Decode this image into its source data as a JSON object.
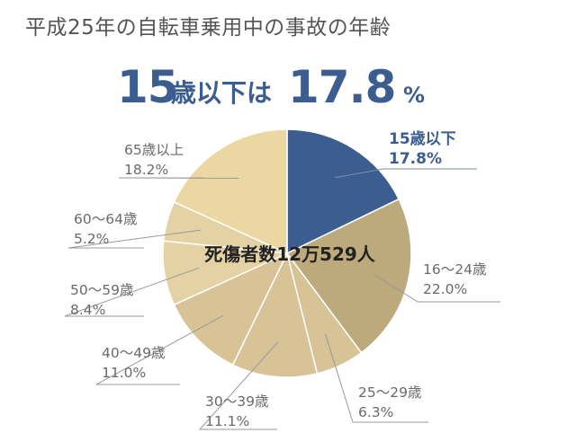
{
  "chart_data": {
    "type": "pie",
    "title": "平成25年の自転車乗用中の事故の年齢",
    "headline": {
      "category": "15歳以下",
      "value": "17.8",
      "unit": "%"
    },
    "center_text": "死傷者数12万529人",
    "slices": [
      {
        "label": "15歳以下",
        "value": 17.8,
        "value_text": "17.8%",
        "color": "#3b5d8f"
      },
      {
        "label": "16～24歳",
        "value": 22.0,
        "value_text": "22.0%",
        "color": "#bca97c"
      },
      {
        "label": "25～29歳",
        "value": 6.3,
        "value_text": "6.3%",
        "color": "#d7c395"
      },
      {
        "label": "30～39歳",
        "value": 11.1,
        "value_text": "11.1%",
        "color": "#d7c395"
      },
      {
        "label": "40～49歳",
        "value": 11.0,
        "value_text": "11.0%",
        "color": "#d7c395"
      },
      {
        "label": "50～59歳",
        "value": 8.4,
        "value_text": "8.4%",
        "color": "#e4d2a4"
      },
      {
        "label": "60～64歳",
        "value": 5.2,
        "value_text": "5.2%",
        "color": "#e4d2a4"
      },
      {
        "label": "65歳以上",
        "value": 18.2,
        "value_text": "18.2%",
        "color": "#ead7a2"
      }
    ],
    "highlight_color": "#3b5d8f",
    "label_color": "#6a6a6a",
    "leader_line_color": "#999999"
  }
}
